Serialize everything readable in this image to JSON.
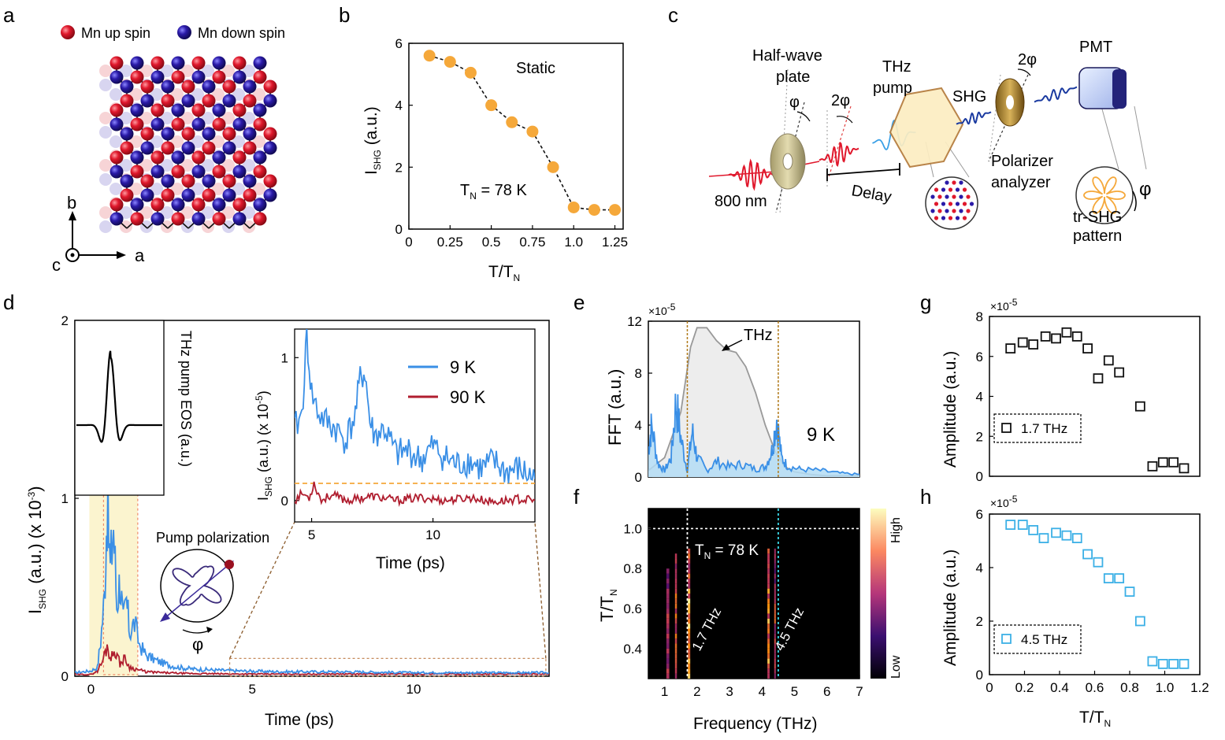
{
  "panel_labels": {
    "a": "a",
    "b": "b",
    "c": "c",
    "d": "d",
    "e": "e",
    "f": "f",
    "g": "g",
    "h": "h"
  },
  "panel_a": {
    "legend_up": "Mn up spin",
    "legend_down": "Mn down spin",
    "axis_b": "b",
    "axis_c": "c",
    "axis_a": "a",
    "colors": {
      "up": "#e0182c",
      "down": "#2a1aa8"
    }
  },
  "panel_c": {
    "half_wave": [
      "Half-wave",
      "plate"
    ],
    "phi": "φ",
    "two_phi": "2φ",
    "thz_pump": [
      "THz",
      "pump"
    ],
    "shg": "SHG",
    "two_phi_right": "2φ",
    "pmt": "PMT",
    "wavelength": "800 nm",
    "delay": "Delay",
    "polarizer": [
      "Polarizer",
      "analyzer"
    ],
    "phi_right": "φ",
    "pattern": [
      "tr-SHG",
      "pattern"
    ]
  },
  "panel_d_text": {
    "ylabel_main": "I",
    "ylabel_sub": "SHG",
    "ylabel_rest": " (a.u.) (x 10",
    "ylabel_exp": "-3",
    "ylabel_close": ")",
    "eos_label": "THz pump EOS (a.u.)",
    "pump_polarization": "Pump polarization",
    "phi": "φ",
    "inset_ylabel_main": "I",
    "inset_ylabel_sub": "SHG",
    "inset_ylabel_rest": " (a.u.) (x 10",
    "inset_ylabel_exp": "-5",
    "inset_ylabel_close": ")",
    "inset_xlabel": "Time (ps)"
  },
  "chart_data": [
    {
      "panel": "b",
      "type": "scatter",
      "annotation": "Static",
      "annotation2": "T",
      "annotation2_sub": "N",
      "annotation2_rest": " = 78 K",
      "xlabel": "T/T",
      "xlabel_sub": "N",
      "ylabel": "I",
      "ylabel_sub": "SHG",
      "ylabel_rest": " (a.u.)",
      "xlim": [
        0,
        1.25
      ],
      "ylim": [
        0,
        6
      ],
      "xticks": [
        "0",
        "0.25",
        "0.5",
        "0.75",
        "1.0",
        "1.25"
      ],
      "yticks": [
        "0",
        "2",
        "4",
        "6"
      ],
      "x": [
        0.125,
        0.25,
        0.375,
        0.5,
        0.625,
        0.75,
        0.875,
        1.0,
        1.125,
        1.25
      ],
      "y": [
        5.6,
        5.4,
        5.05,
        4.0,
        3.45,
        3.15,
        2.0,
        0.7,
        0.62,
        0.62
      ],
      "color": "#f5a83a"
    },
    {
      "panel": "d",
      "type": "line",
      "xlabel": "Time (ps)",
      "xlim": [
        -0.5,
        14.2
      ],
      "ylim": [
        0,
        2
      ],
      "xticks": [
        "0",
        "5",
        "10"
      ],
      "yticks": [
        "0",
        "1",
        "2"
      ],
      "series": [
        {
          "name": "9 K",
          "color": "#3a8fe6",
          "x": [
            -0.5,
            0.0,
            0.2,
            0.3,
            0.42,
            0.5,
            0.6,
            0.7,
            0.8,
            0.9,
            1.0,
            1.1,
            1.2,
            1.35,
            1.5,
            1.7,
            2.0,
            2.3,
            2.7,
            3.2,
            3.8,
            4.5,
            6,
            8,
            10,
            12,
            14.2
          ],
          "y": [
            0.02,
            0.03,
            0.05,
            0.2,
            0.45,
            0.97,
            0.6,
            0.85,
            0.4,
            0.55,
            0.3,
            0.42,
            0.25,
            0.3,
            0.18,
            0.12,
            0.09,
            0.07,
            0.05,
            0.04,
            0.035,
            0.03,
            0.025,
            0.025,
            0.02,
            0.02,
            0.02
          ]
        },
        {
          "name": "90 K",
          "color": "#b01e2f",
          "x": [
            -0.5,
            0.0,
            0.2,
            0.35,
            0.5,
            0.62,
            0.75,
            0.9,
            1.05,
            1.2,
            1.4,
            1.7,
            2.2,
            3,
            5,
            8,
            11,
            14.2
          ],
          "y": [
            0.01,
            0.01,
            0.03,
            0.08,
            0.17,
            0.1,
            0.15,
            0.07,
            0.1,
            0.05,
            0.04,
            0.025,
            0.02,
            0.015,
            0.012,
            0.012,
            0.012,
            0.012
          ]
        }
      ],
      "inset": {
        "xlim": [
          4.3,
          14.2
        ],
        "ylim": [
          -0.15,
          1.2
        ],
        "xticks": [
          "5",
          "10"
        ],
        "yticks": [
          "0",
          "1"
        ],
        "legend": [
          "9 K",
          "90 K"
        ],
        "reference_level": 0.12,
        "series": [
          {
            "name": "9 K",
            "color": "#3a8fe6",
            "x": [
              4.3,
              4.6,
              4.8,
              5.0,
              5.3,
              5.6,
              6.0,
              6.4,
              6.8,
              7.0,
              7.2,
              7.4,
              7.6,
              8.0,
              8.5,
              9.0,
              9.5,
              10.0,
              10.5,
              11.0,
              11.5,
              12.0,
              12.5,
              13.0,
              13.5,
              14.2
            ],
            "y": [
              0.5,
              0.6,
              1.15,
              0.75,
              0.6,
              0.55,
              0.5,
              0.42,
              0.6,
              0.85,
              0.9,
              0.55,
              0.45,
              0.5,
              0.32,
              0.35,
              0.28,
              0.38,
              0.3,
              0.25,
              0.28,
              0.22,
              0.27,
              0.2,
              0.22,
              0.15
            ]
          },
          {
            "name": "90 K",
            "color": "#b01e2f",
            "x": [
              4.3,
              4.6,
              4.9,
              5.1,
              5.4,
              5.8,
              6.5,
              7.5,
              8.5,
              9.5,
              10.5,
              11.5,
              12.5,
              13.5,
              14.2
            ],
            "y": [
              0.0,
              0.05,
              0.02,
              0.12,
              0.0,
              0.04,
              0.0,
              0.03,
              0.0,
              0.02,
              0.0,
              0.02,
              -0.01,
              0.01,
              0.0
            ]
          }
        ]
      }
    },
    {
      "panel": "e",
      "type": "area",
      "xlabel": "Frequency (THz)",
      "ylabel": "FFT (a.u.)",
      "multiplier": "×10",
      "multiplier_exp": "-5",
      "xlim": [
        0.5,
        7
      ],
      "ylim": [
        0,
        12
      ],
      "yticks": [
        "0",
        "4",
        "8",
        "12"
      ],
      "annotation": "THz",
      "temperature": "9 K",
      "markers": [
        1.7,
        4.5
      ],
      "series": [
        {
          "name": "THz",
          "color": "#999999",
          "x": [
            0.5,
            1.0,
            1.5,
            1.8,
            2.0,
            2.3,
            2.6,
            2.9,
            3.2,
            3.5,
            3.8,
            4.1,
            4.4,
            4.7,
            5.0,
            5.5,
            6.0,
            7.0
          ],
          "y": [
            0.5,
            1.5,
            5.0,
            10.0,
            11.5,
            11.5,
            10.5,
            9.8,
            9.6,
            8.5,
            6.5,
            4.0,
            2.0,
            0.8,
            0.4,
            0.2,
            0.1,
            0.1
          ]
        },
        {
          "name": "9 K",
          "color": "#3a8fe6",
          "x": [
            0.5,
            0.6,
            0.8,
            1.0,
            1.2,
            1.35,
            1.5,
            1.7,
            1.85,
            2.0,
            2.3,
            2.6,
            3.0,
            3.4,
            3.8,
            4.1,
            4.3,
            4.45,
            4.6,
            4.8,
            5.2,
            5.8,
            6.4,
            7.0
          ],
          "y": [
            2.0,
            4.0,
            1.0,
            0.5,
            1.5,
            5.8,
            3.0,
            0.5,
            3.5,
            1.5,
            0.5,
            1.2,
            0.8,
            1.0,
            0.6,
            0.8,
            2.0,
            4.5,
            1.5,
            0.8,
            0.6,
            0.5,
            0.3,
            0.2
          ]
        }
      ]
    },
    {
      "panel": "f",
      "type": "heatmap",
      "xlabel": "Frequency (THz)",
      "ylabel": "T/T",
      "ylabel_sub": "N",
      "xlim": [
        0.5,
        7
      ],
      "ylim": [
        0.25,
        1.1
      ],
      "xticks": [
        "1",
        "2",
        "3",
        "4",
        "5",
        "6",
        "7"
      ],
      "yticks": [
        "0.4",
        "0.6",
        "0.8",
        "1.0"
      ],
      "colorbar": [
        "High",
        "Low"
      ],
      "lines": {
        "tn": 1.0,
        "f1": 1.7,
        "f2": 4.5
      },
      "labels": {
        "tn": "T",
        "tn_sub": "N",
        "tn_rest": " = 78 K",
        "f1": "1.7 THz",
        "f2": "4.5 THz"
      },
      "bands": [
        {
          "f": 1.1,
          "w": 0.09,
          "tmax": 0.8,
          "i": 0.6
        },
        {
          "f": 1.35,
          "w": 0.06,
          "tmax": 0.86,
          "i": 0.8
        },
        {
          "f": 1.75,
          "w": 0.08,
          "tmax": 0.9,
          "i": 1.0
        },
        {
          "f": 4.2,
          "w": 0.07,
          "tmax": 0.88,
          "i": 0.9
        },
        {
          "f": 4.4,
          "w": 0.05,
          "tmax": 0.88,
          "i": 0.7
        }
      ]
    },
    {
      "panel": "g",
      "type": "scatter",
      "xlabel": "",
      "ylabel": "Amplitude (a.u.)",
      "multiplier": "×10",
      "multiplier_exp": "-5",
      "xlim": [
        0,
        1.2
      ],
      "ylim": [
        0,
        8
      ],
      "yticks": [
        "0",
        "2",
        "4",
        "6",
        "8"
      ],
      "legend": "1.7 THz",
      "x": [
        0.12,
        0.19,
        0.25,
        0.32,
        0.38,
        0.44,
        0.5,
        0.56,
        0.62,
        0.68,
        0.74,
        0.86,
        0.93,
        0.99,
        1.05,
        1.11
      ],
      "y": [
        6.4,
        6.7,
        6.6,
        7.0,
        6.9,
        7.2,
        7.0,
        6.4,
        4.9,
        5.8,
        5.2,
        3.5,
        0.5,
        0.7,
        0.7,
        0.4
      ],
      "color": "#111111"
    },
    {
      "panel": "h",
      "type": "scatter",
      "xlabel": "T/T",
      "xlabel_sub": "N",
      "ylabel": "Amplitude (a.u.)",
      "multiplier": "×10",
      "multiplier_exp": "-5",
      "xlim": [
        0,
        1.2
      ],
      "ylim": [
        0,
        6
      ],
      "xticks": [
        "0",
        "0.2",
        "0.4",
        "0.6",
        "0.8",
        "1.0",
        "1.2"
      ],
      "yticks": [
        "0",
        "2",
        "4",
        "6"
      ],
      "legend": "4.5 THz",
      "x": [
        0.12,
        0.19,
        0.25,
        0.31,
        0.38,
        0.44,
        0.5,
        0.56,
        0.62,
        0.68,
        0.74,
        0.8,
        0.86,
        0.93,
        0.99,
        1.05,
        1.11
      ],
      "y": [
        5.6,
        5.6,
        5.4,
        5.1,
        5.3,
        5.2,
        5.1,
        4.5,
        4.2,
        3.6,
        3.6,
        3.1,
        2.0,
        0.5,
        0.4,
        0.4,
        0.4
      ],
      "color": "#3cb0e6"
    }
  ]
}
